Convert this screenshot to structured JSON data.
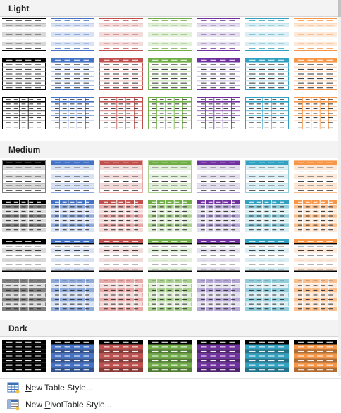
{
  "sections": [
    {
      "key": "light",
      "label": "Light"
    },
    {
      "key": "medium",
      "label": "Medium"
    },
    {
      "key": "dark",
      "label": "Dark"
    }
  ],
  "colors": {
    "black": {
      "dark": "#000000",
      "mid": "#7f7f7f",
      "light": "#d9d9d9"
    },
    "blue": {
      "dark": "#4472c4",
      "mid": "#8eaadb",
      "light": "#d9e2f3"
    },
    "red": {
      "dark": "#c0504d",
      "mid": "#e6a9a7",
      "light": "#f2dcdb"
    },
    "green": {
      "dark": "#70ad47",
      "mid": "#a9d08e",
      "light": "#e2efda"
    },
    "purple": {
      "dark": "#7030a0",
      "mid": "#b4a7d6",
      "light": "#e4dfec"
    },
    "teal": {
      "dark": "#31a1c1",
      "mid": "#92cddc",
      "light": "#daeef3"
    },
    "orange": {
      "dark": "#f79646",
      "mid": "#fabf8f",
      "light": "#fde9d9"
    }
  },
  "column_colors": [
    "black",
    "blue",
    "red",
    "green",
    "purple",
    "teal",
    "orange"
  ],
  "menu": {
    "new_table_style": {
      "prefix": "",
      "accel": "N",
      "rest": "ew Table Style..."
    },
    "new_pivot_style": {
      "prefix": "New ",
      "accel": "P",
      "rest": "ivotTable Style..."
    }
  }
}
